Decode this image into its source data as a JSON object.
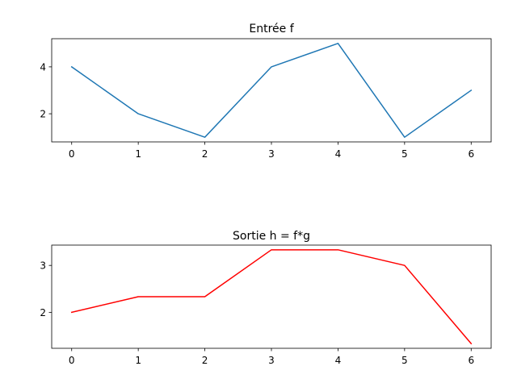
{
  "chart_data": [
    {
      "type": "line",
      "title": "Entrée f",
      "xlabel": "",
      "ylabel": "",
      "x": [
        0,
        1,
        2,
        3,
        4,
        5,
        6
      ],
      "xticks": [
        0,
        1,
        2,
        3,
        4,
        5,
        6
      ],
      "yticks": [
        2,
        4
      ],
      "xlim": [
        -0.3,
        6.3
      ],
      "ylim": [
        0.8,
        5.2
      ],
      "grid": false,
      "series": [
        {
          "values": [
            4,
            2,
            1,
            4,
            5,
            1,
            3
          ],
          "color": "#1f77b4"
        }
      ]
    },
    {
      "type": "line",
      "title": "Sortie h = f*g",
      "xlabel": "",
      "ylabel": "",
      "x": [
        0,
        1,
        2,
        3,
        4,
        5,
        6
      ],
      "xticks": [
        0,
        1,
        2,
        3,
        4,
        5,
        6
      ],
      "yticks": [
        2,
        3
      ],
      "xlim": [
        -0.3,
        6.3
      ],
      "ylim": [
        1.233,
        3.433
      ],
      "grid": false,
      "series": [
        {
          "values": [
            2,
            2.333,
            2.333,
            3.333,
            3.333,
            3,
            1.333
          ],
          "color": "#ff0000"
        }
      ]
    }
  ]
}
